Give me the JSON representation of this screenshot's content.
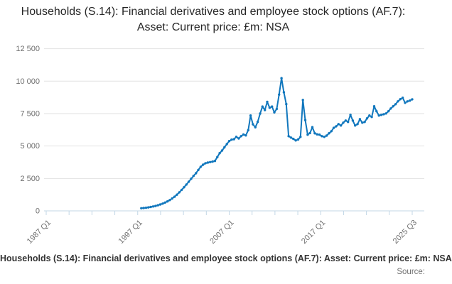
{
  "title": {
    "text": "Households (S.14): Financial derivatives and employee stock options (AF.7): Asset: Current price: £m: NSA"
  },
  "footer": {
    "caption": "Households (S.14): Financial derivatives and employee stock options (AF.7): Asset: Current price: £m: NSA",
    "source": "Source:"
  },
  "colors": {
    "line": "#1177bd",
    "grid": "#e2e2e2",
    "axis": "#c3d7e6",
    "tick_label": "#6e6e6e",
    "background": "#ffffff"
  },
  "chart_data": {
    "type": "line",
    "title": "Households (S.14): Financial derivatives and employee stock options (AF.7): Asset: Current price: £m: NSA",
    "unit": "£m",
    "grid": "horizontal gridlines only",
    "legend": "none",
    "marker": "dot",
    "x_axis": {
      "range_start": "1987 Q1",
      "range_end": "2025 Q3",
      "total_ticks": 17,
      "labeled_tick_indices": [
        0,
        4,
        8,
        12,
        16
      ],
      "tick_labels": [
        "1987 Q1",
        "1997 Q1",
        "2007 Q1",
        "2017 Q1",
        "2025 Q3"
      ],
      "label_rotation_deg": -45
    },
    "y_axis": {
      "min": 0,
      "max": 12500,
      "tick_values": [
        0,
        2500,
        5000,
        7500,
        10000,
        12500
      ],
      "tick_labels": [
        "0",
        "2 500",
        "5 000",
        "7 500",
        "10 000",
        "12 500"
      ]
    },
    "series": [
      {
        "name": "Households (S.14): Financial derivatives and employee stock options (AF.7): Asset: Current price: £m: NSA",
        "frequency": "quarterly",
        "start": "1997 Q1",
        "end": "2025 Q3",
        "quarters_from_axis_start": 40,
        "values": [
          200,
          220,
          240,
          270,
          300,
          340,
          380,
          430,
          490,
          560,
          640,
          730,
          830,
          950,
          1090,
          1250,
          1430,
          1620,
          1820,
          2030,
          2250,
          2480,
          2700,
          2900,
          3150,
          3400,
          3560,
          3670,
          3720,
          3760,
          3800,
          3850,
          4150,
          4450,
          4650,
          4900,
          5150,
          5380,
          5490,
          5520,
          5710,
          5580,
          5760,
          5890,
          5820,
          6220,
          7350,
          6670,
          6440,
          6860,
          7500,
          8040,
          7770,
          8400,
          7950,
          8040,
          7590,
          7860,
          8960,
          10230,
          9140,
          8230,
          5760,
          5650,
          5550,
          5430,
          5500,
          5700,
          8550,
          7000,
          5870,
          6000,
          6450,
          5980,
          5900,
          5870,
          5760,
          5700,
          5800,
          5980,
          6140,
          6400,
          6520,
          6690,
          6580,
          6800,
          6960,
          6850,
          7400,
          6960,
          6580,
          6690,
          7070,
          6800,
          6850,
          7130,
          7350,
          7240,
          8060,
          7680,
          7350,
          7400,
          7450,
          7510,
          7680,
          7890,
          8060,
          8220,
          8440,
          8610,
          8720,
          8330,
          8440,
          8500,
          8600
        ]
      }
    ]
  }
}
